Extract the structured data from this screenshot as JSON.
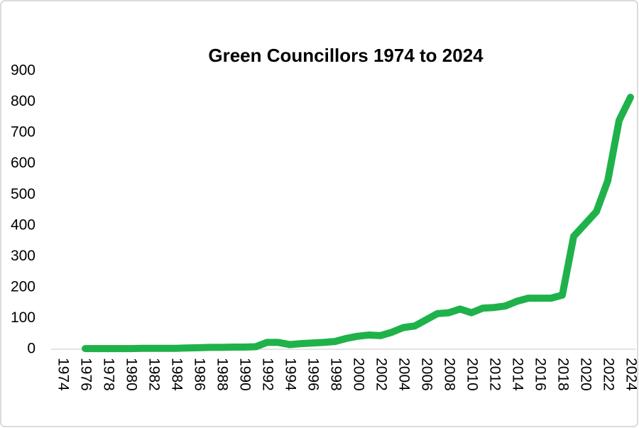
{
  "chart_data": {
    "type": "line",
    "title": "Green Councillors 1974 to 2024",
    "x": [
      1976,
      1977,
      1978,
      1979,
      1980,
      1981,
      1982,
      1983,
      1984,
      1985,
      1986,
      1987,
      1988,
      1989,
      1990,
      1991,
      1992,
      1993,
      1994,
      1995,
      1996,
      1997,
      1998,
      1999,
      2000,
      2001,
      2002,
      2003,
      2004,
      2005,
      2006,
      2007,
      2008,
      2009,
      2010,
      2011,
      2012,
      2013,
      2014,
      2015,
      2016,
      2017,
      2018,
      2019,
      2020,
      2021,
      2022,
      2023,
      2024
    ],
    "series": [
      {
        "name": "Green Councillors",
        "color": "#1fb24a",
        "values": [
          2,
          2,
          2,
          2,
          2,
          3,
          3,
          3,
          3,
          4,
          5,
          6,
          6,
          7,
          7,
          8,
          22,
          22,
          15,
          18,
          20,
          22,
          25,
          35,
          42,
          46,
          44,
          55,
          70,
          75,
          95,
          115,
          118,
          130,
          118,
          133,
          135,
          140,
          155,
          165,
          165,
          165,
          175,
          365,
          405,
          445,
          545,
          740,
          815
        ]
      }
    ],
    "xlim": [
      1974,
      2024
    ],
    "xticks": [
      1974,
      1976,
      1978,
      1980,
      1982,
      1984,
      1986,
      1988,
      1990,
      1992,
      1994,
      1996,
      1998,
      2000,
      2002,
      2004,
      2006,
      2008,
      2010,
      2012,
      2014,
      2016,
      2018,
      2020,
      2022,
      2024
    ],
    "ylim": [
      0,
      900
    ],
    "yticks": [
      0,
      100,
      200,
      300,
      400,
      500,
      600,
      700,
      800,
      900
    ],
    "grid": false
  }
}
